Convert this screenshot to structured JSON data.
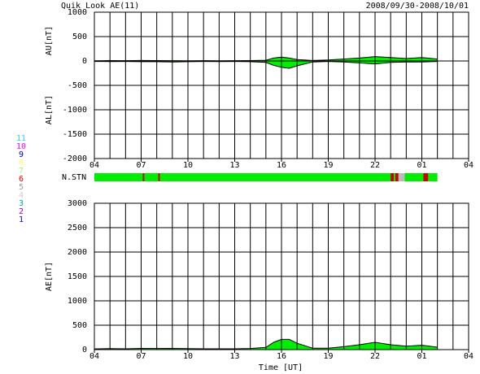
{
  "chart_data": [
    {
      "type": "area",
      "title": "Quik Look AE(11)",
      "subtitle": "2008/09/30-2008/10/01",
      "ylabel_top": "AU[nT]",
      "ylabel_bottom": "AL[nT]",
      "x": [
        0,
        1,
        2,
        3,
        4,
        5,
        6,
        7,
        8,
        9,
        10,
        11,
        11.5,
        12,
        12.5,
        13,
        14,
        15,
        16,
        17,
        18,
        19,
        20,
        21,
        22
      ],
      "series": [
        {
          "name": "AU",
          "color": "#00ee00",
          "values": [
            5,
            8,
            6,
            10,
            8,
            6,
            5,
            6,
            5,
            6,
            8,
            15,
            60,
            80,
            60,
            30,
            10,
            20,
            40,
            60,
            90,
            70,
            50,
            70,
            40
          ]
        },
        {
          "name": "AL",
          "color": "#00ee00",
          "values": [
            -10,
            -12,
            -10,
            -15,
            -15,
            -20,
            -15,
            -10,
            -12,
            -10,
            -15,
            -30,
            -90,
            -130,
            -150,
            -100,
            -20,
            -10,
            -20,
            -40,
            -60,
            -30,
            -20,
            -20,
            -10
          ]
        }
      ],
      "line_color": "#000000",
      "xlim": [
        0,
        24
      ],
      "xticks": [
        {
          "value": 0,
          "label": "04"
        },
        {
          "value": 3,
          "label": "07"
        },
        {
          "value": 6,
          "label": "10"
        },
        {
          "value": 9,
          "label": "13"
        },
        {
          "value": 12,
          "label": "16"
        },
        {
          "value": 15,
          "label": "19"
        },
        {
          "value": 18,
          "label": "22"
        },
        {
          "value": 21,
          "label": "01"
        },
        {
          "value": 24,
          "label": "04"
        }
      ],
      "xgrid": [
        0,
        1,
        2,
        3,
        4,
        5,
        6,
        7,
        8,
        9,
        10,
        11,
        12,
        13,
        14,
        15,
        16,
        17,
        18,
        19,
        20,
        21,
        22,
        23,
        24
      ],
      "ylim": [
        -2000,
        1000
      ],
      "yticks": [
        -2000,
        -1500,
        -1000,
        -500,
        0,
        500,
        1000
      ],
      "grid": true
    },
    {
      "type": "strip",
      "label": "N.STN",
      "station_legend": [
        {
          "label": "11",
          "color": "#33ccff"
        },
        {
          "label": "10",
          "color": "#ff00ff"
        },
        {
          "label": "9",
          "color": "#0000cc"
        },
        {
          "label": "8",
          "color": "#ffff66"
        },
        {
          "label": "7",
          "color": "#99ff66"
        },
        {
          "label": "6",
          "color": "#ff0000"
        },
        {
          "label": "5",
          "color": "#999999"
        },
        {
          "label": "4",
          "color": "#cccccc"
        },
        {
          "label": "3",
          "color": "#00aaaa"
        },
        {
          "label": "2",
          "color": "#aa00aa"
        },
        {
          "label": "1",
          "color": "#0000ff"
        }
      ],
      "segments": [
        {
          "x0": 0,
          "x1": 22,
          "color": "#00ee00"
        },
        {
          "x0": 3.1,
          "x1": 3.2,
          "color": "#cc0000"
        },
        {
          "x0": 4.1,
          "x1": 4.2,
          "color": "#cc0000"
        },
        {
          "x0": 19.0,
          "x1": 19.2,
          "color": "#cc0000"
        },
        {
          "x0": 19.3,
          "x1": 19.5,
          "color": "#cc0000"
        },
        {
          "x0": 19.5,
          "x1": 19.9,
          "color": "#bbbbbb"
        },
        {
          "x0": 21.1,
          "x1": 21.4,
          "color": "#cc0000"
        }
      ],
      "xlim": [
        0,
        24
      ]
    },
    {
      "type": "area",
      "ylabel": "AE[nT]",
      "xlabel": "Time [UT]",
      "x": [
        0,
        1,
        2,
        3,
        4,
        5,
        6,
        7,
        8,
        9,
        10,
        11,
        11.5,
        12,
        12.5,
        13,
        14,
        15,
        16,
        17,
        18,
        19,
        20,
        21,
        22
      ],
      "series": [
        {
          "name": "AE",
          "color": "#00ee00",
          "values": [
            15,
            20,
            16,
            25,
            23,
            26,
            20,
            16,
            17,
            16,
            23,
            45,
            150,
            210,
            210,
            130,
            30,
            30,
            60,
            100,
            150,
            100,
            70,
            90,
            50
          ]
        }
      ],
      "line_color": "#000000",
      "xlim": [
        0,
        24
      ],
      "xticks": [
        {
          "value": 0,
          "label": "04"
        },
        {
          "value": 3,
          "label": "07"
        },
        {
          "value": 6,
          "label": "10"
        },
        {
          "value": 9,
          "label": "13"
        },
        {
          "value": 12,
          "label": "16"
        },
        {
          "value": 15,
          "label": "19"
        },
        {
          "value": 18,
          "label": "22"
        },
        {
          "value": 21,
          "label": "01"
        },
        {
          "value": 24,
          "label": "04"
        }
      ],
      "xgrid": [
        0,
        1,
        2,
        3,
        4,
        5,
        6,
        7,
        8,
        9,
        10,
        11,
        12,
        13,
        14,
        15,
        16,
        17,
        18,
        19,
        20,
        21,
        22,
        23,
        24
      ],
      "ylim": [
        0,
        3000
      ],
      "yticks": [
        0,
        500,
        1000,
        1500,
        2000,
        2500,
        3000
      ],
      "grid": true
    }
  ]
}
